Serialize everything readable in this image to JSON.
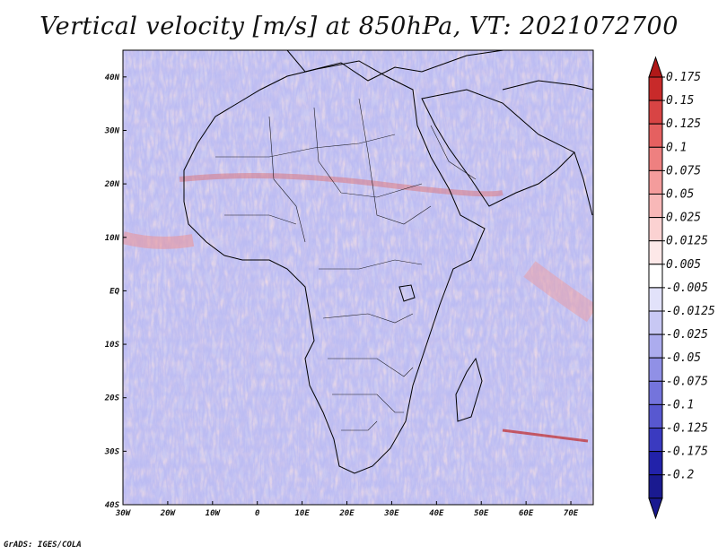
{
  "map": {
    "title": "Vertical velocity [m/s] at 850hPa, VT: 2021072700",
    "credit": "GrADS: IGES/COLA",
    "extent": {
      "lon": [
        -30,
        75
      ],
      "lat": [
        -40,
        45
      ]
    },
    "lon_ticks": [
      {
        "value": -30,
        "label": "30W"
      },
      {
        "value": -20,
        "label": "20W"
      },
      {
        "value": -10,
        "label": "10W"
      },
      {
        "value": 0,
        "label": "0"
      },
      {
        "value": 10,
        "label": "10E"
      },
      {
        "value": 20,
        "label": "20E"
      },
      {
        "value": 30,
        "label": "30E"
      },
      {
        "value": 40,
        "label": "40E"
      },
      {
        "value": 50,
        "label": "50E"
      },
      {
        "value": 60,
        "label": "60E"
      },
      {
        "value": 70,
        "label": "70E"
      }
    ],
    "lat_ticks": [
      {
        "value": 40,
        "label": "40N"
      },
      {
        "value": 30,
        "label": "30N"
      },
      {
        "value": 20,
        "label": "20N"
      },
      {
        "value": 10,
        "label": "10N"
      },
      {
        "value": 0,
        "label": "EQ"
      },
      {
        "value": -10,
        "label": "10S"
      },
      {
        "value": -20,
        "label": "20S"
      },
      {
        "value": -30,
        "label": "30S"
      },
      {
        "value": -40,
        "label": "40S"
      }
    ],
    "colorbar": [
      {
        "label": "0.175",
        "color": "#b01818"
      },
      {
        "label": "0.15",
        "color": "#c82a2a"
      },
      {
        "label": "0.125",
        "color": "#d84444"
      },
      {
        "label": "0.1",
        "color": "#e56060"
      },
      {
        "label": "0.075",
        "color": "#ee8080"
      },
      {
        "label": "0.05",
        "color": "#f49c9c"
      },
      {
        "label": "0.025",
        "color": "#f8b8b8"
      },
      {
        "label": "0.0125",
        "color": "#fbd2d2"
      },
      {
        "label": "0.005",
        "color": "#fde8e8"
      },
      {
        "label": "-0.005",
        "color": "#ffffff"
      },
      {
        "label": "-0.0125",
        "color": "#e2e2fa"
      },
      {
        "label": "-0.025",
        "color": "#c8c8f4"
      },
      {
        "label": "-0.05",
        "color": "#acacee"
      },
      {
        "label": "-0.075",
        "color": "#9090e6"
      },
      {
        "label": "-0.1",
        "color": "#7474dc"
      },
      {
        "label": "-0.125",
        "color": "#5858d0"
      },
      {
        "label": "-0.175",
        "color": "#3a3ac0"
      },
      {
        "label": "-0.2",
        "color": "#2222aa"
      },
      {
        "label": "",
        "color": "#1a1a90"
      }
    ]
  }
}
